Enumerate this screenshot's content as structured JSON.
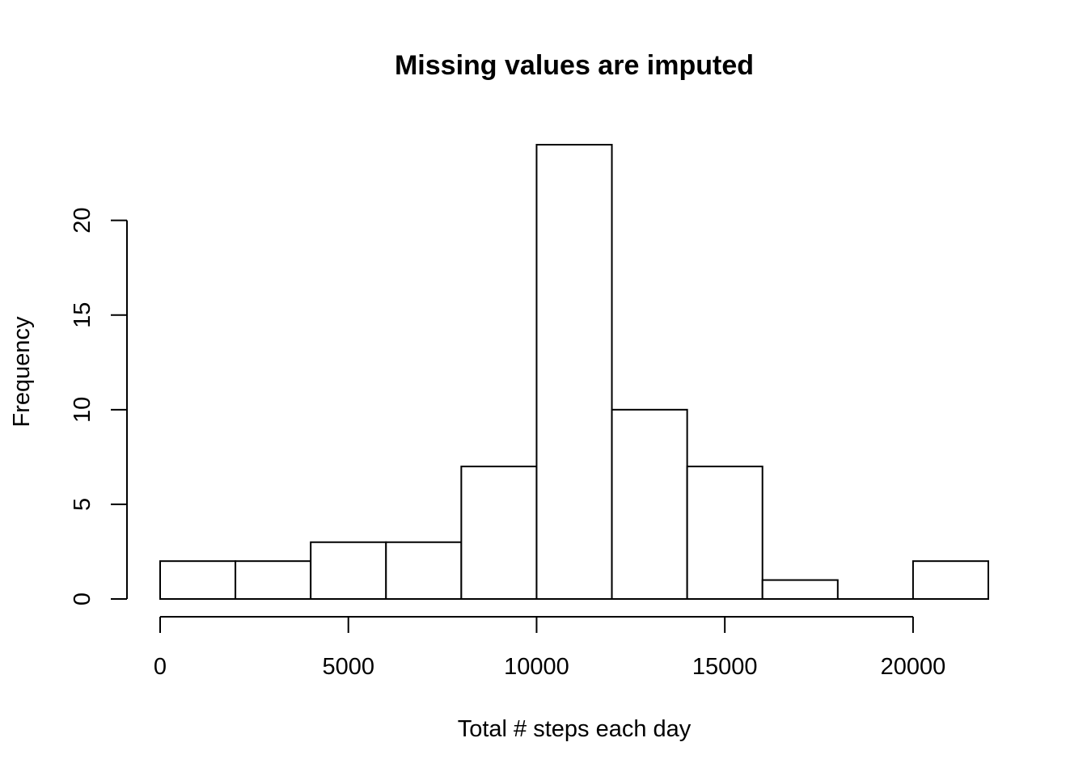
{
  "chart_data": {
    "type": "bar",
    "subtype": "histogram",
    "title": "Missing values are imputed",
    "xlabel": "Total # steps each day",
    "ylabel": "Frequency",
    "bin_edges": [
      0,
      2000,
      4000,
      6000,
      8000,
      10000,
      12000,
      14000,
      16000,
      18000,
      20000,
      22000
    ],
    "values": [
      2,
      2,
      3,
      3,
      7,
      24,
      10,
      7,
      1,
      0,
      2
    ],
    "xlim": [
      0,
      22000
    ],
    "ylim": [
      0,
      24
    ],
    "x_ticks": [
      0,
      5000,
      10000,
      15000,
      20000
    ],
    "y_ticks": [
      0,
      5,
      10,
      15,
      20
    ],
    "grid": false,
    "legend": "none",
    "bar_fill": "#ffffff",
    "bar_stroke": "#000000"
  }
}
